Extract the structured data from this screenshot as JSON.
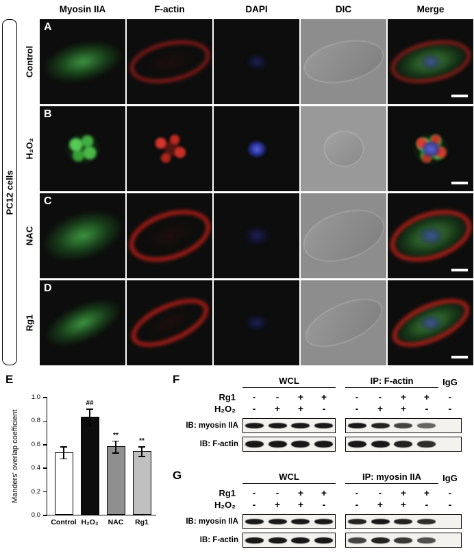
{
  "figure": {
    "col_headers": [
      "Myosin IIA",
      "F-actin",
      "DAPI",
      "DIC",
      "Merge"
    ],
    "side_label": "PC12 cells",
    "rows": [
      {
        "letter": "A",
        "label": "Control"
      },
      {
        "letter": "B",
        "label": "H₂O₂"
      },
      {
        "letter": "C",
        "label": "NAC"
      },
      {
        "letter": "D",
        "label": "Rg1"
      }
    ]
  },
  "chart_data": {
    "type": "bar",
    "panel_letter": "E",
    "categories": [
      "Control",
      "H₂O₂",
      "NAC",
      "Rg1"
    ],
    "values": [
      0.53,
      0.83,
      0.58,
      0.54
    ],
    "errors": [
      0.05,
      0.07,
      0.05,
      0.04
    ],
    "annotations": [
      "",
      "##",
      "**",
      "**"
    ],
    "bar_colors": [
      "#ffffff",
      "#0d0d0d",
      "#8f8f8f",
      "#c0c0c0"
    ],
    "ylabel": "Manders' overlap coefficient",
    "ylim": [
      0,
      1.0
    ],
    "yticks": [
      "0.0",
      "0.2",
      "0.4",
      "0.6",
      "0.8",
      "1.0"
    ]
  },
  "panel_f": {
    "letter": "F",
    "group_headers": [
      "WCL",
      "IP: F-actin",
      "IgG"
    ],
    "sign_rows": [
      {
        "label": "Rg1",
        "wcl": [
          "-",
          "-",
          "+",
          "+"
        ],
        "ip": [
          "-",
          "-",
          "+",
          "+"
        ],
        "igg": "-"
      },
      {
        "label": "H₂O₂",
        "wcl": [
          "-",
          "+",
          "+",
          "-"
        ],
        "ip": [
          "-",
          "+",
          "+",
          "-"
        ],
        "igg": "-"
      }
    ],
    "blot_rows": [
      {
        "label": "IB: myosin IIA",
        "wcl": [
          1,
          1,
          1,
          1
        ],
        "ip": [
          1,
          0.95,
          0.8,
          0.65,
          0
        ],
        "band_h": 8
      },
      {
        "label": "IB: F-actin",
        "wcl": [
          1,
          1,
          1,
          1
        ],
        "ip": [
          1,
          1,
          0.95,
          0.9,
          0
        ],
        "band_h": 10
      }
    ]
  },
  "panel_g": {
    "letter": "G",
    "group_headers": [
      "WCL",
      "IP: myosin IIA",
      "IgG"
    ],
    "sign_rows": [
      {
        "label": "Rg1",
        "wcl": [
          "-",
          "-",
          "+",
          "+"
        ],
        "ip": [
          "-",
          "-",
          "+",
          "+"
        ],
        "igg": "-"
      },
      {
        "label": "H₂O₂",
        "wcl": [
          "-",
          "+",
          "+",
          "-"
        ],
        "ip": [
          "-",
          "+",
          "+",
          "-"
        ],
        "igg": "-"
      }
    ],
    "blot_rows": [
      {
        "label": "IB: myosin IIA",
        "wcl": [
          1,
          1,
          1,
          1
        ],
        "ip": [
          0.95,
          1,
          0.95,
          0.9,
          0
        ],
        "band_h": 8
      },
      {
        "label": "IB: F-actin",
        "wcl": [
          1,
          1,
          1,
          1
        ],
        "ip": [
          0.8,
          0.95,
          0.85,
          0.75,
          0
        ],
        "band_h": 9
      }
    ]
  }
}
